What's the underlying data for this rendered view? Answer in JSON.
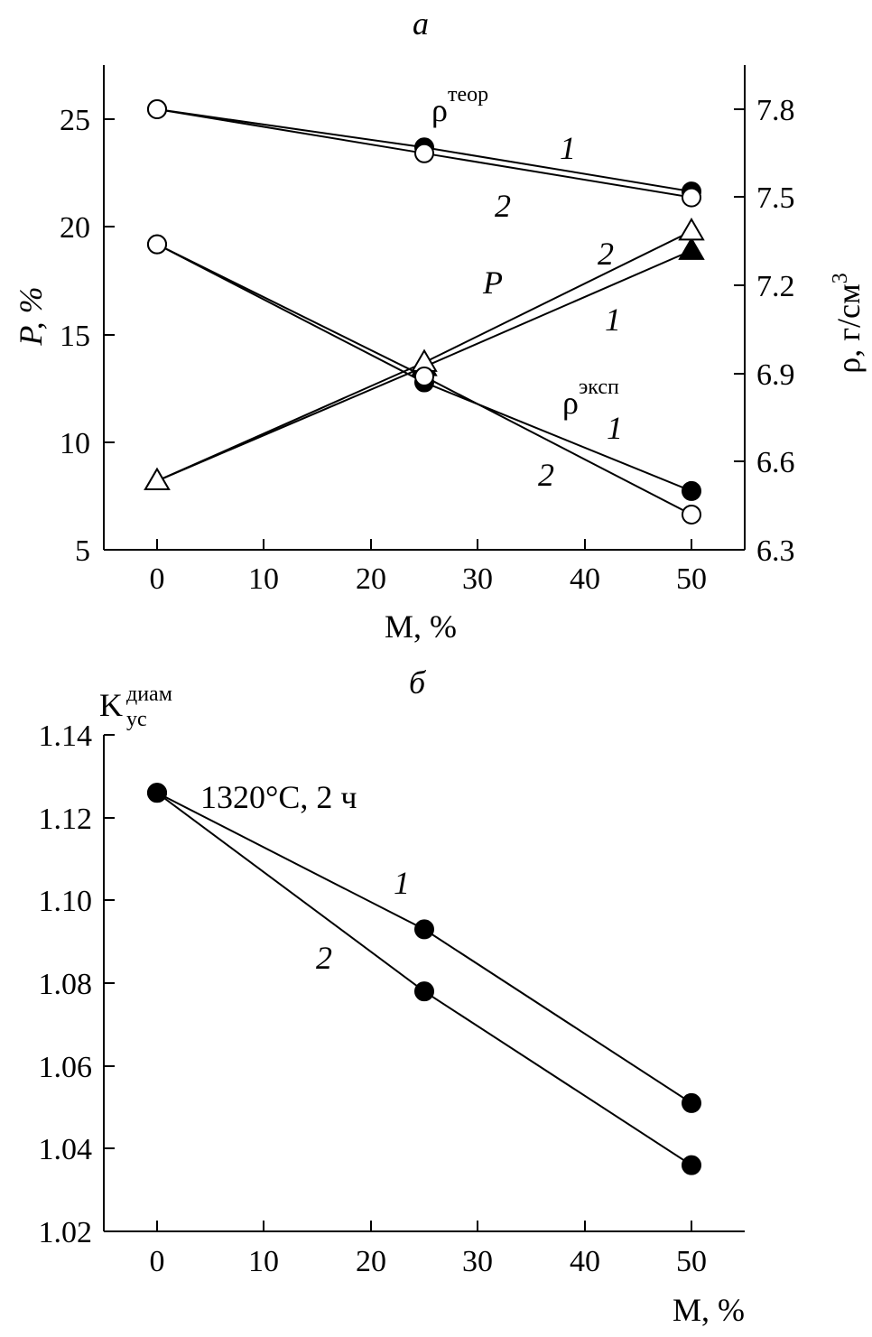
{
  "chart_data": [
    {
      "type": "line",
      "panel_label": "а",
      "xlabel": "М, %",
      "ylabel_left": "P, %",
      "ylabel_right": "ρ, г/см³",
      "ylabel_right_base": "ρ, г/см",
      "ylabel_right_sup": "3",
      "x": [
        0,
        25,
        50
      ],
      "xlim": [
        -5,
        55
      ],
      "xticks": [
        "0",
        "10",
        "20",
        "30",
        "40",
        "50"
      ],
      "ylim_left": [
        5,
        27.5
      ],
      "yticks_left": [
        "5",
        "10",
        "15",
        "20",
        "25"
      ],
      "ylim_right": [
        6.3,
        7.93
      ],
      "yticks_right": [
        "6.3",
        "6.6",
        "6.9",
        "7.2",
        "7.5",
        "7.8"
      ],
      "series": [
        {
          "key": "rho_teor_1",
          "axis": "right",
          "marker": "filled-circle",
          "values": [
            7.8,
            7.67,
            7.52
          ]
        },
        {
          "key": "rho_teor_2",
          "axis": "right",
          "marker": "open-circle",
          "values": [
            7.8,
            7.65,
            7.5
          ]
        },
        {
          "key": "P_1",
          "axis": "left",
          "marker": "filled-triangle",
          "values": [
            8.2,
            13.5,
            18.9
          ]
        },
        {
          "key": "P_2",
          "axis": "left",
          "marker": "open-triangle",
          "values": [
            8.2,
            13.7,
            19.8
          ]
        },
        {
          "key": "rho_exp_1",
          "axis": "right",
          "marker": "filled-circle",
          "values": [
            7.34,
            6.87,
            6.5
          ]
        },
        {
          "key": "rho_exp_2",
          "axis": "right",
          "marker": "open-circle",
          "values": [
            7.34,
            6.89,
            6.42
          ]
        }
      ],
      "annotations": {
        "rho_teor_base": "ρ",
        "rho_teor_sup": "теор",
        "rho_exp_base": "ρ",
        "rho_exp_sup": "эксп",
        "P_label": "P",
        "curve_1": "1",
        "curve_2": "2"
      }
    },
    {
      "type": "line",
      "panel_label": "б",
      "xlabel": "М, %",
      "ylabel_base": "K",
      "ylabel_sup": "диам",
      "ylabel_sub": "ус",
      "x": [
        0,
        25,
        50
      ],
      "xlim": [
        -5,
        55
      ],
      "xticks": [
        "0",
        "10",
        "20",
        "30",
        "40",
        "50"
      ],
      "ylim": [
        1.02,
        1.14
      ],
      "yticks": [
        "1.02",
        "1.04",
        "1.06",
        "1.08",
        "1.10",
        "1.12",
        "1.14"
      ],
      "series": [
        {
          "key": "K_1",
          "marker": "filled-circle",
          "values": [
            1.126,
            1.093,
            1.051
          ]
        },
        {
          "key": "K_2",
          "marker": "filled-circle",
          "values": [
            1.126,
            1.078,
            1.036
          ]
        }
      ],
      "annotations": {
        "condition": "1320°C, 2 ч",
        "curve_1": "1",
        "curve_2": "2"
      }
    }
  ]
}
